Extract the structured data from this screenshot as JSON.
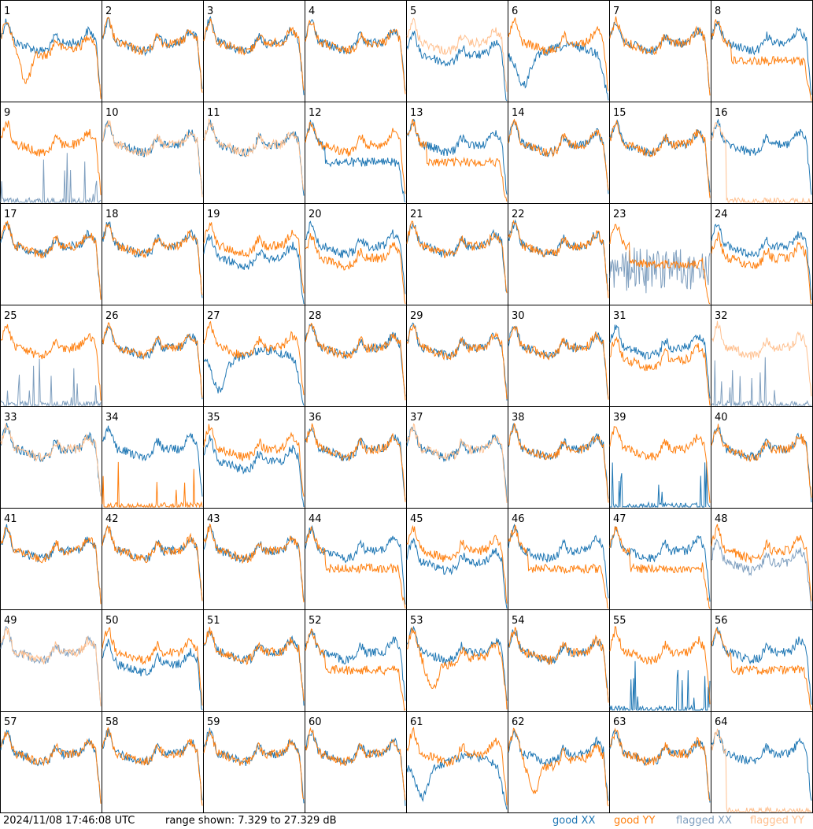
{
  "footer": {
    "timestamp": "2024/11/08 17:46:08 UTC",
    "range": "range shown: 7.329 to 27.329 dB"
  },
  "colors": {
    "good_xx": "#1f77b4",
    "good_yy": "#ff7f0e",
    "flagged_xx": "#7f9fbf",
    "flagged_yy": "#ffc08f"
  },
  "legend": {
    "good_xx": "good XX",
    "good_yy": "good YY",
    "flagged_xx": "flagged XX",
    "flagged_yy": "flagged YY"
  },
  "chart_data": {
    "type": "line",
    "layout": "grid 8x8 small multiples, one panel per tile",
    "x_range": "frequency channel (no axis labels shown)",
    "y_range_db": [
      7.329,
      27.329
    ],
    "grid": false,
    "legend_placement": "bottom-right",
    "panels": [
      {
        "label": "1",
        "xx": "good",
        "yy": "good",
        "shape": "dip"
      },
      {
        "label": "2",
        "xx": "good",
        "yy": "good",
        "shape": "normal"
      },
      {
        "label": "3",
        "xx": "good",
        "yy": "good",
        "shape": "normal"
      },
      {
        "label": "4",
        "xx": "good",
        "yy": "good",
        "shape": "normal"
      },
      {
        "label": "5",
        "xx": "good",
        "yy": "flagged",
        "shape": "xx_dip"
      },
      {
        "label": "6",
        "xx": "good",
        "yy": "good",
        "shape": "xx_deep"
      },
      {
        "label": "7",
        "xx": "good",
        "yy": "good",
        "shape": "normal"
      },
      {
        "label": "8",
        "xx": "good",
        "yy": "good",
        "shape": "yy_flat"
      },
      {
        "label": "9",
        "xx": "flagged",
        "yy": "good",
        "shape": "yy_only"
      },
      {
        "label": "10",
        "xx": "good",
        "yy": "flagged",
        "shape": "normal"
      },
      {
        "label": "11",
        "xx": "good",
        "yy": "flagged",
        "shape": "normal"
      },
      {
        "label": "12",
        "xx": "good",
        "yy": "good",
        "shape": "xx_flat"
      },
      {
        "label": "13",
        "xx": "good",
        "yy": "good",
        "shape": "yy_flat"
      },
      {
        "label": "14",
        "xx": "good",
        "yy": "good",
        "shape": "normal"
      },
      {
        "label": "15",
        "xx": "good",
        "yy": "good",
        "shape": "normal"
      },
      {
        "label": "16",
        "xx": "good",
        "yy": "flagged",
        "shape": "xx_only"
      },
      {
        "label": "17",
        "xx": "good",
        "yy": "good",
        "shape": "normal"
      },
      {
        "label": "18",
        "xx": "good",
        "yy": "good",
        "shape": "normal"
      },
      {
        "label": "19",
        "xx": "good",
        "yy": "good",
        "shape": "xx_low"
      },
      {
        "label": "20",
        "xx": "good",
        "yy": "good",
        "shape": "yy_low"
      },
      {
        "label": "21",
        "xx": "good",
        "yy": "good",
        "shape": "normal"
      },
      {
        "label": "22",
        "xx": "good",
        "yy": "good",
        "shape": "normal"
      },
      {
        "label": "23",
        "xx": "flagged",
        "yy": "good",
        "shape": "noisy_xx"
      },
      {
        "label": "24",
        "xx": "good",
        "yy": "good",
        "shape": "yy_low"
      },
      {
        "label": "25",
        "xx": "flagged",
        "yy": "good",
        "shape": "yy_only"
      },
      {
        "label": "26",
        "xx": "good",
        "yy": "good",
        "shape": "normal"
      },
      {
        "label": "27",
        "xx": "good",
        "yy": "good",
        "shape": "xx_deep"
      },
      {
        "label": "28",
        "xx": "good",
        "yy": "good",
        "shape": "normal"
      },
      {
        "label": "29",
        "xx": "good",
        "yy": "good",
        "shape": "normal"
      },
      {
        "label": "30",
        "xx": "good",
        "yy": "good",
        "shape": "normal"
      },
      {
        "label": "31",
        "xx": "good",
        "yy": "good",
        "shape": "yy_low"
      },
      {
        "label": "32",
        "xx": "flagged",
        "yy": "flagged",
        "shape": "yy_only"
      },
      {
        "label": "33",
        "xx": "good",
        "yy": "flagged",
        "shape": "normal"
      },
      {
        "label": "34",
        "xx": "good",
        "yy": "good",
        "shape": "yy_zero"
      },
      {
        "label": "35",
        "xx": "good",
        "yy": "good",
        "shape": "xx_low"
      },
      {
        "label": "36",
        "xx": "good",
        "yy": "good",
        "shape": "normal"
      },
      {
        "label": "37",
        "xx": "good",
        "yy": "flagged",
        "shape": "normal"
      },
      {
        "label": "38",
        "xx": "good",
        "yy": "good",
        "shape": "normal"
      },
      {
        "label": "39",
        "xx": "good",
        "yy": "good",
        "shape": "xx_zero"
      },
      {
        "label": "40",
        "xx": "good",
        "yy": "good",
        "shape": "normal"
      },
      {
        "label": "41",
        "xx": "good",
        "yy": "good",
        "shape": "normal"
      },
      {
        "label": "42",
        "xx": "good",
        "yy": "good",
        "shape": "normal"
      },
      {
        "label": "43",
        "xx": "good",
        "yy": "good",
        "shape": "normal"
      },
      {
        "label": "44",
        "xx": "good",
        "yy": "good",
        "shape": "yy_flat"
      },
      {
        "label": "45",
        "xx": "good",
        "yy": "good",
        "shape": "xx_dip"
      },
      {
        "label": "46",
        "xx": "good",
        "yy": "good",
        "shape": "yy_flat"
      },
      {
        "label": "47",
        "xx": "good",
        "yy": "good",
        "shape": "yy_flat"
      },
      {
        "label": "48",
        "xx": "flagged",
        "yy": "good",
        "shape": "xx_low"
      },
      {
        "label": "49",
        "xx": "flagged",
        "yy": "flagged",
        "shape": "normal"
      },
      {
        "label": "50",
        "xx": "good",
        "yy": "good",
        "shape": "xx_dip"
      },
      {
        "label": "51",
        "xx": "good",
        "yy": "good",
        "shape": "normal"
      },
      {
        "label": "52",
        "xx": "good",
        "yy": "good",
        "shape": "yy_flat"
      },
      {
        "label": "53",
        "xx": "good",
        "yy": "good",
        "shape": "yy_dip"
      },
      {
        "label": "54",
        "xx": "good",
        "yy": "good",
        "shape": "normal"
      },
      {
        "label": "55",
        "xx": "good",
        "yy": "good",
        "shape": "xx_zero"
      },
      {
        "label": "56",
        "xx": "good",
        "yy": "good",
        "shape": "yy_flat"
      },
      {
        "label": "57",
        "xx": "good",
        "yy": "good",
        "shape": "normal"
      },
      {
        "label": "58",
        "xx": "good",
        "yy": "good",
        "shape": "normal"
      },
      {
        "label": "59",
        "xx": "good",
        "yy": "good",
        "shape": "normal"
      },
      {
        "label": "60",
        "xx": "good",
        "yy": "good",
        "shape": "normal"
      },
      {
        "label": "61",
        "xx": "good",
        "yy": "good",
        "shape": "xx_deep"
      },
      {
        "label": "62",
        "xx": "good",
        "yy": "good",
        "shape": "yy_dip"
      },
      {
        "label": "63",
        "xx": "good",
        "yy": "good",
        "shape": "normal"
      },
      {
        "label": "64",
        "xx": "good",
        "yy": "flagged",
        "shape": "xx_only"
      }
    ]
  }
}
